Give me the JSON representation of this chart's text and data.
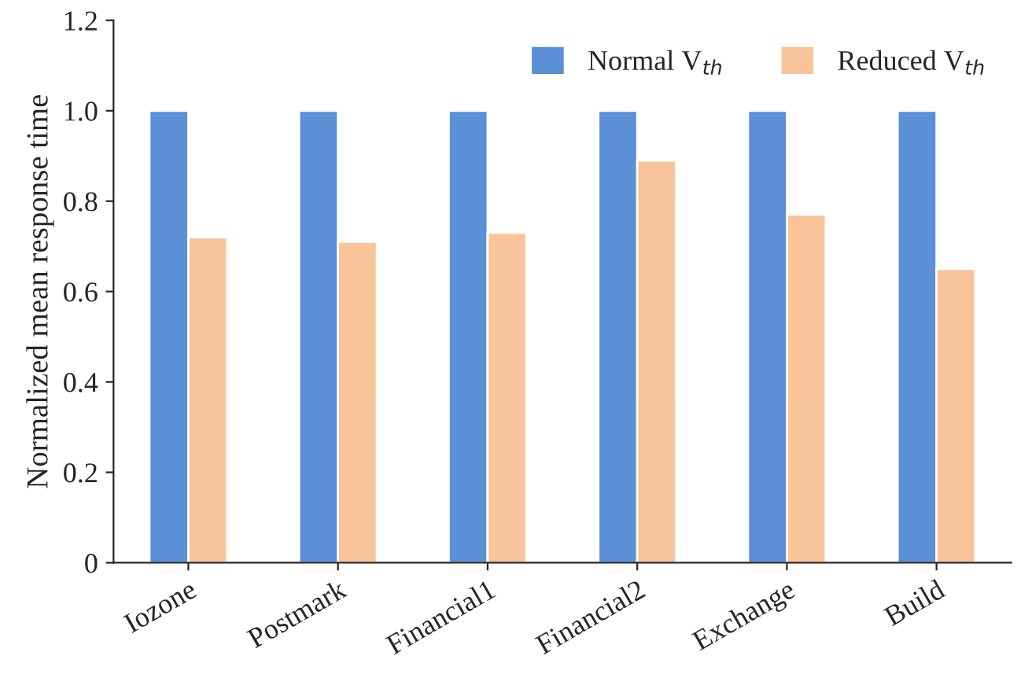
{
  "chart_data": {
    "type": "bar",
    "ylabel": "Normalized mean response time",
    "categories": [
      "Iozone",
      "Postmark",
      "Financial1",
      "Financial2",
      "Exchange",
      "Build"
    ],
    "series": [
      {
        "name": "Normal V$_{th}$",
        "color": "#5b8fd6",
        "values": [
          1.0,
          1.0,
          1.0,
          1.0,
          1.0,
          1.0
        ]
      },
      {
        "name": "Reduced V$_{th}$",
        "color": "#f9c49a",
        "values": [
          0.72,
          0.71,
          0.73,
          0.89,
          0.77,
          0.65
        ]
      }
    ],
    "ylim": [
      0,
      1.2
    ],
    "yticks": [
      {
        "value": 0,
        "label": "0"
      },
      {
        "value": 0.2,
        "label": "0.2"
      },
      {
        "value": 0.4,
        "label": "0.4"
      },
      {
        "value": 0.6,
        "label": "0.6"
      },
      {
        "value": 0.8,
        "label": "0.8"
      },
      {
        "value": 1.0,
        "label": "1.0"
      },
      {
        "value": 1.2,
        "label": "1.2"
      }
    ],
    "legend": "top right",
    "grid": false
  }
}
